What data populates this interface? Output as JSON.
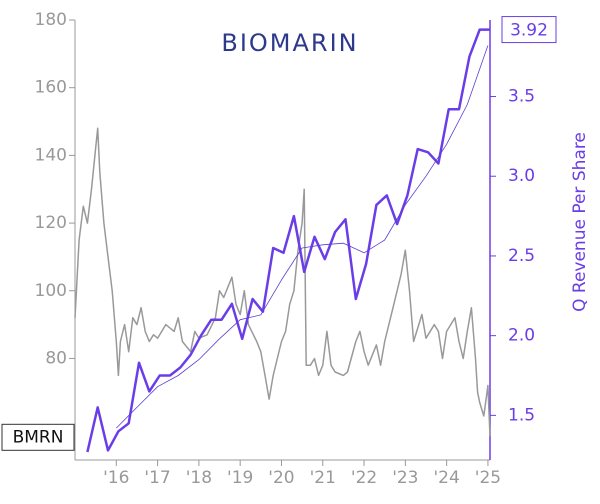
{
  "chart_data": {
    "type": "line",
    "logo": "BIOMARIN",
    "y2label": "Q Revenue Per Share",
    "xlim": [
      2015.0,
      2025.05
    ],
    "xticks": [
      {
        "value": 2016,
        "label": "'16"
      },
      {
        "value": 2017,
        "label": "'17"
      },
      {
        "value": 2018,
        "label": "'18"
      },
      {
        "value": 2019,
        "label": "'19"
      },
      {
        "value": 2020,
        "label": "'20"
      },
      {
        "value": 2021,
        "label": "'21"
      },
      {
        "value": 2022,
        "label": "'22"
      },
      {
        "value": 2023,
        "label": "'23"
      },
      {
        "value": 2024,
        "label": "'24"
      },
      {
        "value": 2025,
        "label": "'25"
      }
    ],
    "ylim": [
      50,
      180
    ],
    "yticks": [
      80,
      100,
      120,
      140,
      160,
      180
    ],
    "y2lim": [
      1.22,
      3.98
    ],
    "y2ticks": [
      1.5,
      {
        "value": 2,
        "label": "2.0"
      },
      2.5,
      {
        "value": 3,
        "label": "3.0"
      },
      3.5
    ],
    "series": [
      {
        "name": "BMRN",
        "color": "#999999",
        "x": [
          2015.0,
          2015.1,
          2015.2,
          2015.3,
          2015.4,
          2015.5,
          2015.55,
          2015.6,
          2015.7,
          2015.8,
          2015.9,
          2016.0,
          2016.05,
          2016.1,
          2016.2,
          2016.3,
          2016.4,
          2016.5,
          2016.6,
          2016.7,
          2016.8,
          2016.9,
          2017.0,
          2017.2,
          2017.4,
          2017.5,
          2017.6,
          2017.8,
          2017.9,
          2018.0,
          2018.2,
          2018.4,
          2018.5,
          2018.6,
          2018.8,
          2018.9,
          2019.0,
          2019.1,
          2019.2,
          2019.4,
          2019.5,
          2019.6,
          2019.7,
          2019.8,
          2019.9,
          2020.0,
          2020.1,
          2020.2,
          2020.3,
          2020.4,
          2020.5,
          2020.55,
          2020.6,
          2020.7,
          2020.8,
          2020.9,
          2021.0,
          2021.1,
          2021.2,
          2021.3,
          2021.5,
          2021.6,
          2021.8,
          2021.9,
          2022.0,
          2022.1,
          2022.3,
          2022.4,
          2022.5,
          2022.7,
          2022.8,
          2022.9,
          2023.0,
          2023.1,
          2023.2,
          2023.4,
          2023.5,
          2023.7,
          2023.8,
          2023.9,
          2024.0,
          2024.2,
          2024.3,
          2024.4,
          2024.5,
          2024.6,
          2024.7,
          2024.75,
          2024.8,
          2024.9,
          2025.0,
          2025.05
        ],
        "values": [
          92,
          115,
          125,
          120,
          130,
          142,
          148,
          135,
          120,
          110,
          100,
          85,
          75,
          85,
          90,
          82,
          92,
          90,
          95,
          88,
          85,
          87,
          86,
          90,
          88,
          92,
          85,
          82,
          88,
          86,
          87,
          92,
          100,
          98,
          104,
          96,
          93,
          100,
          90,
          85,
          82,
          75,
          68,
          75,
          80,
          85,
          88,
          96,
          100,
          112,
          120,
          130,
          78,
          78,
          80,
          75,
          78,
          88,
          78,
          76,
          75,
          76,
          85,
          88,
          82,
          78,
          84,
          78,
          85,
          95,
          100,
          105,
          112,
          100,
          85,
          93,
          86,
          90,
          88,
          80,
          88,
          92,
          85,
          80,
          88,
          95,
          80,
          70,
          67,
          63,
          72,
          57
        ]
      },
      {
        "name": "Q Revenue Per Share",
        "color": "#6a3de8",
        "axis": "y2",
        "x": [
          2015.3,
          2015.55,
          2015.8,
          2016.05,
          2016.3,
          2016.55,
          2016.8,
          2017.05,
          2017.3,
          2017.55,
          2017.8,
          2018.05,
          2018.3,
          2018.55,
          2018.8,
          2019.05,
          2019.3,
          2019.55,
          2019.8,
          2020.05,
          2020.3,
          2020.55,
          2020.8,
          2021.05,
          2021.3,
          2021.55,
          2021.8,
          2022.05,
          2022.3,
          2022.55,
          2022.8,
          2023.05,
          2023.3,
          2023.55,
          2023.8,
          2024.05,
          2024.3,
          2024.55,
          2024.8,
          2025.05
        ],
        "values": [
          1.27,
          1.55,
          1.28,
          1.4,
          1.45,
          1.83,
          1.65,
          1.75,
          1.75,
          1.8,
          1.88,
          2.0,
          2.1,
          2.1,
          2.2,
          1.98,
          2.23,
          2.15,
          2.55,
          2.52,
          2.75,
          2.4,
          2.62,
          2.48,
          2.65,
          2.73,
          2.23,
          2.45,
          2.82,
          2.88,
          2.7,
          2.88,
          3.17,
          3.15,
          3.08,
          3.42,
          3.42,
          3.75,
          3.92,
          3.92
        ]
      },
      {
        "color": "#5b3fd0",
        "axis": "y2",
        "x": [
          2016.0,
          2016.5,
          2017.0,
          2017.5,
          2018.0,
          2018.5,
          2019.0,
          2019.5,
          2020.0,
          2020.5,
          2021.0,
          2021.5,
          2022.0,
          2022.5,
          2023.0,
          2023.5,
          2024.0,
          2024.5,
          2025.0
        ],
        "values": [
          1.42,
          1.55,
          1.68,
          1.75,
          1.85,
          1.98,
          2.1,
          2.13,
          2.35,
          2.55,
          2.57,
          2.58,
          2.52,
          2.6,
          2.82,
          3.0,
          3.2,
          3.45,
          3.82
        ]
      }
    ]
  }
}
